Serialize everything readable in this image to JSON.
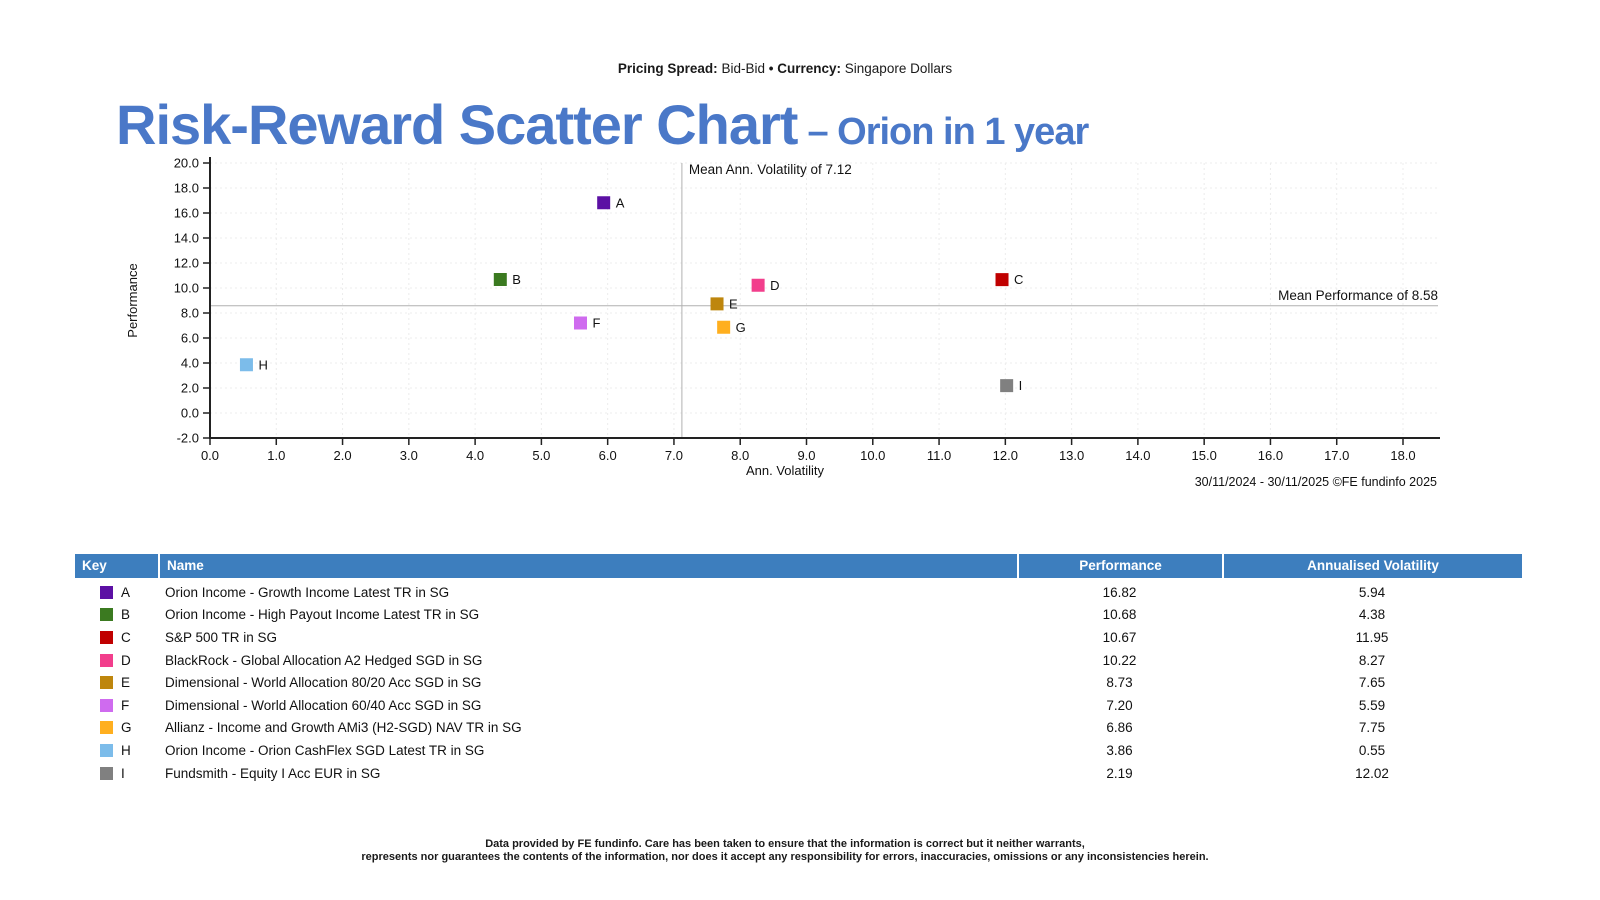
{
  "pricing_bar": {
    "spread_label": "Pricing Spread:",
    "spread_value": "Bid-Bid",
    "separator": "•",
    "currency_label": "Currency:",
    "currency_value": "Singapore Dollars"
  },
  "title": {
    "main": "Risk-Reward Scatter Chart",
    "suffix": "– Orion in 1 year"
  },
  "chart_data": {
    "type": "scatter",
    "xlabel": "Ann. Volatility",
    "ylabel": "Performance",
    "xlim": [
      0.0,
      18.0
    ],
    "xtick_step": 1.0,
    "ylim": [
      -2.0,
      20.0
    ],
    "ytick_step": 2.0,
    "grid": true,
    "mean_x": {
      "value": 7.12,
      "label": "Mean Ann. Volatility of 7.12"
    },
    "mean_y": {
      "value": 8.58,
      "label": "Mean Performance of 8.58"
    },
    "footnote": "30/11/2024 - 30/11/2025 ©FE fundinfo 2025",
    "points": [
      {
        "key": "A",
        "name": "Orion Income - Growth Income Latest TR in SG",
        "x": 5.94,
        "y": 16.82,
        "color": "#5C10A4"
      },
      {
        "key": "B",
        "name": "Orion Income - High Payout Income Latest TR in SG",
        "x": 4.38,
        "y": 10.68,
        "color": "#3B7A20"
      },
      {
        "key": "C",
        "name": "S&P 500 TR in SG",
        "x": 11.95,
        "y": 10.67,
        "color": "#C00000"
      },
      {
        "key": "D",
        "name": "BlackRock - Global Allocation A2 Hedged SGD in SG",
        "x": 8.27,
        "y": 10.22,
        "color": "#F23E8C"
      },
      {
        "key": "E",
        "name": "Dimensional - World Allocation 80/20 Acc SGD in SG",
        "x": 7.65,
        "y": 8.73,
        "color": "#BE860D"
      },
      {
        "key": "F",
        "name": "Dimensional - World Allocation 60/40 Acc SGD in SG",
        "x": 5.59,
        "y": 7.2,
        "color": "#CF6BEF"
      },
      {
        "key": "G",
        "name": "Allianz - Income and Growth AMi3 (H2-SGD) NAV TR in SG",
        "x": 7.75,
        "y": 6.86,
        "color": "#FFAF1F"
      },
      {
        "key": "H",
        "name": "Orion Income - Orion CashFlex SGD Latest TR in SG",
        "x": 0.55,
        "y": 3.86,
        "color": "#7CBCEA"
      },
      {
        "key": "I",
        "name": "Fundsmith - Equity I Acc EUR in SG",
        "x": 12.02,
        "y": 2.19,
        "color": "#808080"
      }
    ]
  },
  "table": {
    "headers": [
      "Key",
      "Name",
      "Performance",
      "Annualised Volatility"
    ],
    "rows": [
      {
        "key": "A",
        "name": "Orion Income - Growth Income Latest TR in SG",
        "performance": "16.82",
        "volatility": "5.94",
        "color": "#5C10A4"
      },
      {
        "key": "B",
        "name": "Orion Income - High Payout Income Latest TR in SG",
        "performance": "10.68",
        "volatility": "4.38",
        "color": "#3B7A20"
      },
      {
        "key": "C",
        "name": "S&P 500 TR in SG",
        "performance": "10.67",
        "volatility": "11.95",
        "color": "#C00000"
      },
      {
        "key": "D",
        "name": "BlackRock - Global Allocation A2 Hedged SGD in SG",
        "performance": "10.22",
        "volatility": "8.27",
        "color": "#F23E8C"
      },
      {
        "key": "E",
        "name": "Dimensional - World Allocation 80/20 Acc SGD in SG",
        "performance": "8.73",
        "volatility": "7.65",
        "color": "#BE860D"
      },
      {
        "key": "F",
        "name": "Dimensional - World Allocation 60/40 Acc SGD in SG",
        "performance": "7.20",
        "volatility": "5.59",
        "color": "#CF6BEF"
      },
      {
        "key": "G",
        "name": "Allianz - Income and Growth AMi3 (H2-SGD) NAV TR in SG",
        "performance": "6.86",
        "volatility": "7.75",
        "color": "#FFAF1F"
      },
      {
        "key": "H",
        "name": "Orion Income - Orion CashFlex SGD Latest TR in SG",
        "performance": "3.86",
        "volatility": "0.55",
        "color": "#7CBCEA"
      },
      {
        "key": "I",
        "name": "Fundsmith - Equity I Acc EUR in SG",
        "performance": "2.19",
        "volatility": "12.02",
        "color": "#808080"
      }
    ]
  },
  "disclaimer": {
    "line1": "Data provided by FE fundinfo. Care has been taken to ensure that the information is correct but it neither warrants,",
    "line2": "represents nor guarantees the contents of the information, nor does it accept any responsibility for errors, inaccuracies, omissions or any inconsistencies herein."
  },
  "colors": {
    "title_blue": "#4A78C8",
    "table_header_bg": "#3D7EBE",
    "mean_line": "#b0b0b0",
    "grid_line": "#ececec"
  }
}
